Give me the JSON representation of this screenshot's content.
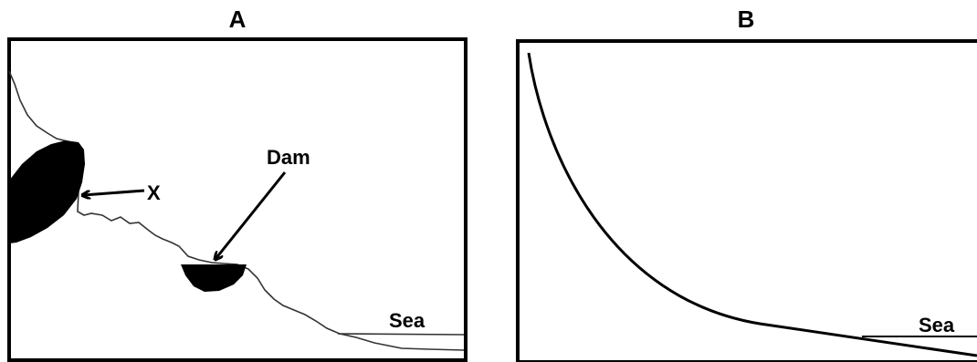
{
  "panel_a": {
    "title": "A",
    "labels": {
      "x": "X",
      "dam": "Dam",
      "sea": "Sea"
    }
  },
  "panel_b": {
    "title": "B",
    "labels": {
      "sea": "Sea"
    }
  }
}
